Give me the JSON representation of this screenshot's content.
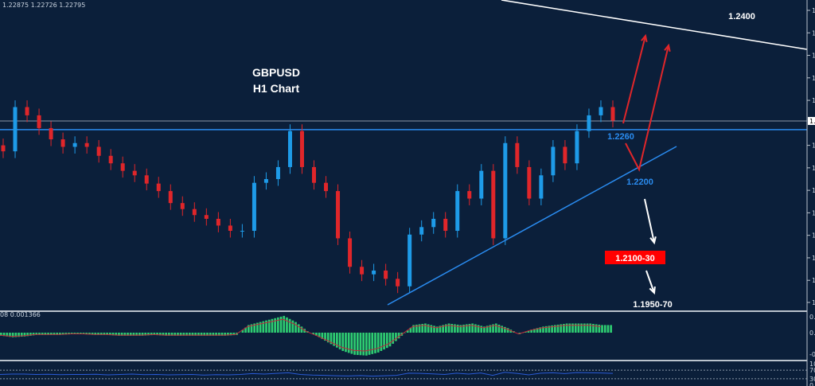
{
  "header": {
    "ohlc_readout": "1.22875 1.22726 1.22795"
  },
  "title": {
    "line1": "GBPUSD",
    "line2": "H1 Chart"
  },
  "colors": {
    "background": "#0b1f3a",
    "bull": "#1e9be8",
    "bear": "#e0262a",
    "support": "#2a8cf0",
    "target_box": "#ff0000",
    "macd_hist": "#2ecc71",
    "macd_signal": "#c0283a",
    "rsi": "#2a5bd7"
  },
  "chart_data": {
    "type": "candlestick",
    "symbol": "GBPUSD",
    "timeframe": "H1",
    "ylim": [
      1.202,
      1.2445
    ],
    "y_ticks": [
      "1.24270",
      "1.23970",
      "1.23670",
      "1.23370",
      "1.23070",
      "1.22470",
      "1.22170",
      "1.21870",
      "1.21570",
      "1.21270",
      "1.20970",
      "1.20670",
      "1.20375"
    ],
    "current_price": "1.22795",
    "closes": [
      1.2239,
      1.2298,
      1.2287,
      1.227,
      1.2255,
      1.2245,
      1.225,
      1.2245,
      1.2233,
      1.2223,
      1.2213,
      1.2207,
      1.2196,
      1.2186,
      1.217,
      1.2162,
      1.2154,
      1.2149,
      1.214,
      1.2133,
      1.2133,
      1.2197,
      1.2202,
      1.2218,
      1.2266,
      1.2218,
      1.2197,
      1.2186,
      1.2123,
      1.2085,
      1.2075,
      1.208,
      1.2069,
      1.2059,
      1.2128,
      1.2138,
      1.2149,
      1.2133,
      1.2186,
      1.2176,
      1.2213,
      1.2123,
      1.225,
      1.2218,
      1.2176,
      1.2207,
      1.2245,
      1.2223,
      1.2266,
      1.2287,
      1.2298,
      1.228
    ],
    "levels": [
      {
        "label": "1.2400",
        "price": 1.24,
        "color": "#ffffff"
      },
      {
        "label": "1.2260",
        "price": 1.226,
        "color": "#2a8cf0"
      },
      {
        "label": "1.2200",
        "price": 1.22,
        "color": "#2a8cf0"
      },
      {
        "label": "1.2100-30",
        "price": 1.21,
        "color": "#ffffff",
        "boxed": true
      },
      {
        "label": "1.1950-70",
        "price": 1.195,
        "color": "#ffffff"
      }
    ],
    "horizontal_lines": [
      {
        "price": 1.22795,
        "color": "#8a97a8"
      },
      {
        "price": 1.2268,
        "color": "#2a8cf0"
      }
    ],
    "macd": {
      "readout": "08 0.001366",
      "y_ticks": [
        "0.002365",
        "0.00",
        "-0.003128"
      ],
      "histogram": [
        -0.0004,
        -0.0006,
        -0.0005,
        -0.0003,
        -0.0003,
        -0.0003,
        -0.0002,
        -0.0002,
        -0.0003,
        -0.0003,
        -0.0004,
        -0.0004,
        -0.0004,
        -0.0003,
        -0.0004,
        -0.0004,
        -0.0004,
        -0.0004,
        -0.0004,
        -0.0004,
        -0.0003,
        0.001,
        0.0014,
        0.0018,
        0.0022,
        0.0014,
        0.0002,
        -0.0006,
        -0.0015,
        -0.0024,
        -0.0029,
        -0.003,
        -0.0026,
        -0.0018,
        -0.0004,
        0.001,
        0.0012,
        0.0008,
        0.0012,
        0.001,
        0.0012,
        0.0008,
        0.0012,
        0.0006,
        -0.0002,
        0.0004,
        0.0008,
        0.001,
        0.0012,
        0.0012,
        0.0012,
        0.001
      ]
    },
    "rsi": {
      "y_ticks": [
        "100",
        "70",
        "30",
        "0"
      ],
      "values": [
        50,
        52,
        52,
        50,
        51,
        49,
        50,
        50,
        51,
        48,
        50,
        52,
        49,
        50,
        48,
        49,
        50,
        47,
        49,
        48,
        50,
        54,
        52,
        55,
        58,
        50,
        47,
        46,
        44,
        43,
        45,
        42,
        44,
        46,
        56,
        55,
        53,
        50,
        56,
        52,
        57,
        46,
        60,
        55,
        48,
        56,
        58,
        54,
        59,
        58,
        57,
        55
      ]
    }
  }
}
